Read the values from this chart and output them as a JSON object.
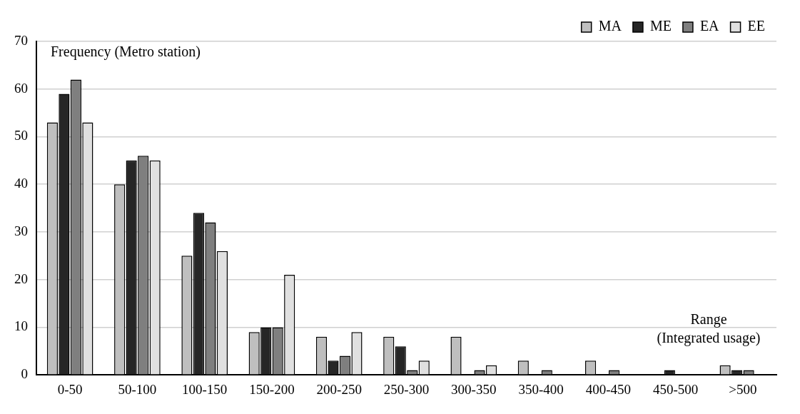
{
  "chart_data": {
    "type": "bar",
    "xlabel": "Range\n(Integrated usage)",
    "ylabel": "Frequency (Metro station)",
    "categories": [
      "0-50",
      "50-100",
      "100-150",
      "150-200",
      "200-250",
      "250-300",
      "300-350",
      "350-400",
      "400-450",
      "450-500",
      ">500"
    ],
    "series": [
      {
        "name": "MA",
        "color": "#bfbfbf",
        "values": [
          53,
          40,
          25,
          9,
          8,
          8,
          8,
          3,
          3,
          0,
          2
        ]
      },
      {
        "name": "ME",
        "color": "#262626",
        "values": [
          59,
          45,
          34,
          10,
          3,
          6,
          0,
          0,
          0,
          1,
          1
        ]
      },
      {
        "name": "EA",
        "color": "#7f7f7f",
        "values": [
          62,
          46,
          32,
          10,
          4,
          1,
          1,
          1,
          1,
          0,
          1
        ]
      },
      {
        "name": "EE",
        "color": "#e0e0e0",
        "values": [
          53,
          45,
          26,
          21,
          9,
          3,
          2,
          0,
          0,
          0,
          0
        ]
      }
    ],
    "ylim": [
      0,
      70
    ],
    "yticks": [
      0,
      10,
      20,
      30,
      40,
      50,
      60,
      70
    ],
    "grid": "y",
    "legend": "top right"
  }
}
